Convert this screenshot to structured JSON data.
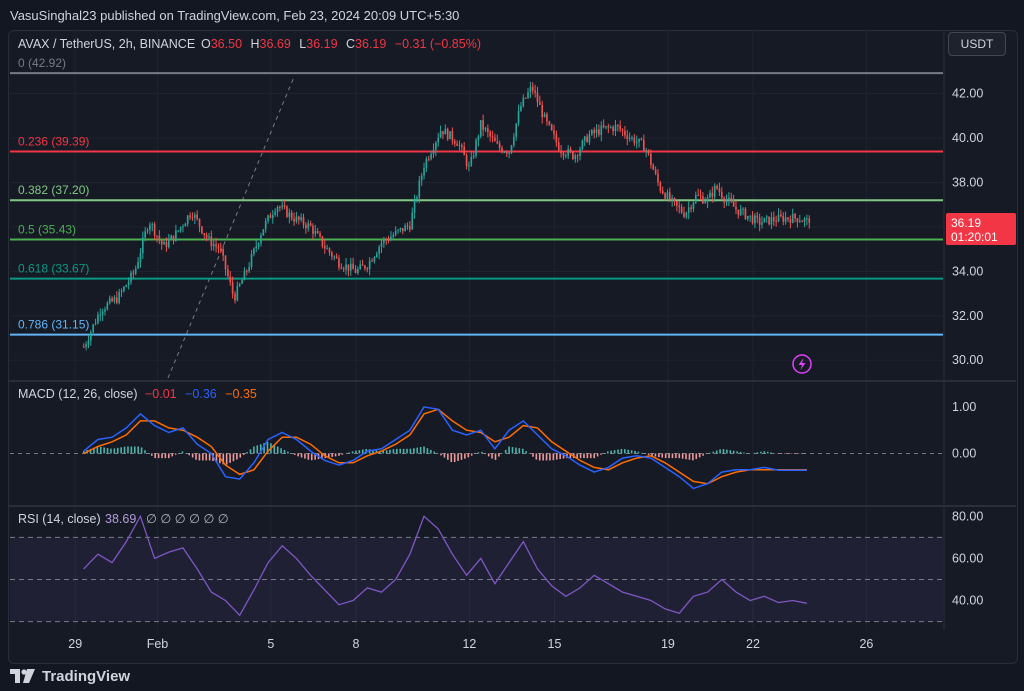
{
  "header": {
    "publisher": "VasuSinghal23 published on TradingView.com, Feb 23, 2024 20:09 UTC+5:30",
    "symbol": "AVAX / TetherUS, 2h, BINANCE",
    "ohlc": [
      {
        "label": "O",
        "value": "36.50"
      },
      {
        "label": "H",
        "value": "36.69"
      },
      {
        "label": "L",
        "value": "36.19"
      },
      {
        "label": "C",
        "value": "36.19"
      }
    ],
    "change": "−0.31 (−0.85%)",
    "currency": "USDT"
  },
  "colors": {
    "up": "#26a69a",
    "down": "#ef5350",
    "fib_0": "#787b86",
    "fib_236": "#f23645",
    "fib_382": "#81c784",
    "fib_5": "#4caf50",
    "fib_618": "#089981",
    "fib_786": "#64b5f6",
    "macd": "#2962ff",
    "signal": "#ff6d00",
    "rsi": "#7e57c2",
    "price_tag": "#f23645"
  },
  "price_tag": {
    "price": "36.19",
    "countdown": "01:20:01"
  },
  "macd_header": {
    "label": "MACD (12, 26, close)",
    "hist": "−0.01",
    "macd": "−0.36",
    "signal": "−0.35"
  },
  "rsi_header": {
    "label": "RSI (14, close)",
    "value": "38.69",
    "extras": "∅ ∅ ∅ ∅ ∅ ∅"
  },
  "footer": {
    "brand": "TradingView"
  },
  "chart_data": [
    {
      "type": "candlestick",
      "title": "AVAX / TetherUS, 2h, BINANCE",
      "x_tick_labels": [
        "29",
        "Feb",
        "5",
        "8",
        "12",
        "15",
        "19",
        "22",
        "26"
      ],
      "y_tick_labels": [
        "30.00",
        "32.00",
        "34.00",
        "36.00",
        "38.00",
        "40.00",
        "42.00"
      ],
      "ylim": [
        29.2,
        43.6
      ],
      "fib_levels": [
        {
          "label": "0 (42.92)",
          "value": 42.92
        },
        {
          "label": "0.236 (39.39)",
          "value": 39.39
        },
        {
          "label": "0.382 (37.20)",
          "value": 37.2
        },
        {
          "label": "0.5 (35.43)",
          "value": 35.43
        },
        {
          "label": "0.618 (33.67)",
          "value": 33.67
        },
        {
          "label": "0.786 (31.15)",
          "value": 31.15
        }
      ],
      "close_path": {
        "x_days": [
          0,
          0.6,
          1.2,
          1.8,
          2.3,
          2.8,
          3.2,
          3.8,
          4.4,
          4.8,
          5.3,
          5.8,
          6.3,
          6.8,
          7.4,
          8,
          8.5,
          9,
          9.6,
          10,
          10.5,
          11,
          11.5,
          12,
          12.6,
          13.2,
          13.6,
          14,
          14.6,
          15,
          15.4,
          15.8,
          16.3,
          16.8,
          17.3,
          17.8,
          18.3,
          18.8,
          19.3,
          19.8,
          20.3,
          20.8,
          21.2,
          21.6,
          22,
          22.3,
          22.6,
          23,
          23.4,
          23.8,
          24.2,
          24.7,
          25.2,
          25.6
        ],
        "values": [
          30.6,
          32.3,
          32.8,
          34.0,
          36.3,
          35.1,
          35.6,
          36.7,
          35.4,
          35.0,
          32.8,
          34.2,
          35.9,
          37.0,
          36.4,
          36.0,
          35.1,
          34.4,
          34.0,
          34.3,
          35.3,
          35.7,
          36.1,
          38.8,
          40.4,
          39.8,
          38.6,
          40.6,
          39.6,
          39.4,
          41.4,
          42.3,
          40.7,
          39.5,
          39.2,
          40.1,
          40.4,
          40.5,
          40.0,
          39.6,
          37.8,
          37.0,
          36.6,
          37.4,
          37.2,
          37.8,
          37.3,
          36.8,
          36.5,
          36.2,
          36.3,
          36.4,
          36.4,
          36.19
        ]
      },
      "last_price": 36.19
    },
    {
      "type": "line",
      "title": "MACD (12, 26, close)",
      "y_tick_labels": [
        "1.00",
        "0.00"
      ],
      "ylim": [
        -1.0,
        1.45
      ],
      "x_days": [
        0,
        0.5,
        1,
        1.5,
        2,
        2.5,
        3,
        3.5,
        4,
        4.5,
        5,
        5.5,
        6,
        6.5,
        7,
        7.5,
        8,
        8.5,
        9,
        9.5,
        10,
        10.5,
        11,
        11.5,
        12,
        12.5,
        13,
        13.5,
        14,
        14.5,
        15,
        15.5,
        16,
        16.5,
        17,
        17.5,
        18,
        18.5,
        19,
        19.5,
        20,
        20.5,
        21,
        21.5,
        22,
        22.5,
        23,
        23.5,
        24,
        24.5,
        25,
        25.5
      ],
      "series": [
        {
          "values": [
            0.05,
            0.3,
            0.35,
            0.55,
            0.85,
            0.6,
            0.45,
            0.55,
            0.2,
            0.0,
            -0.5,
            -0.55,
            -0.2,
            0.3,
            0.45,
            0.3,
            0.05,
            -0.15,
            -0.25,
            -0.15,
            0.05,
            0.1,
            0.3,
            0.5,
            1.0,
            0.95,
            0.5,
            0.4,
            0.5,
            0.1,
            0.5,
            0.7,
            0.4,
            0.1,
            -0.05,
            -0.25,
            -0.4,
            -0.3,
            -0.1,
            -0.05,
            -0.1,
            -0.3,
            -0.5,
            -0.75,
            -0.65,
            -0.4,
            -0.35,
            -0.35,
            -0.3,
            -0.36,
            -0.36,
            -0.36
          ]
        },
        {
          "values": [
            0.0,
            0.15,
            0.25,
            0.4,
            0.7,
            0.7,
            0.55,
            0.5,
            0.35,
            0.15,
            -0.25,
            -0.45,
            -0.35,
            0.05,
            0.35,
            0.35,
            0.2,
            -0.05,
            -0.2,
            -0.2,
            -0.05,
            0.05,
            0.2,
            0.4,
            0.85,
            0.95,
            0.7,
            0.5,
            0.45,
            0.25,
            0.35,
            0.6,
            0.55,
            0.25,
            0.05,
            -0.15,
            -0.3,
            -0.35,
            -0.2,
            -0.1,
            -0.05,
            -0.2,
            -0.4,
            -0.6,
            -0.65,
            -0.5,
            -0.4,
            -0.35,
            -0.35,
            -0.35,
            -0.35,
            -0.35
          ]
        }
      ]
    },
    {
      "type": "line",
      "title": "RSI (14, close)",
      "y_tick_labels": [
        "80.00",
        "60.00",
        "40.00"
      ],
      "ylim": [
        26,
        83
      ],
      "band_levels": [
        70,
        50,
        30
      ],
      "x_days": [
        0,
        0.5,
        1,
        1.5,
        2,
        2.5,
        3,
        3.5,
        4,
        4.5,
        5,
        5.5,
        6,
        6.5,
        7,
        7.5,
        8,
        8.5,
        9,
        9.5,
        10,
        10.5,
        11,
        11.5,
        12,
        12.5,
        13,
        13.5,
        14,
        14.5,
        15,
        15.5,
        16,
        16.5,
        17,
        17.5,
        18,
        18.5,
        19,
        19.5,
        20,
        20.5,
        21,
        21.5,
        22,
        22.5,
        23,
        23.5,
        24,
        24.5,
        25,
        25.5
      ],
      "values": [
        55,
        62,
        58,
        68,
        80,
        60,
        63,
        65,
        55,
        44,
        40,
        33,
        45,
        58,
        66,
        60,
        52,
        45,
        38,
        40,
        46,
        44,
        50,
        62,
        80,
        74,
        62,
        52,
        60,
        48,
        58,
        68,
        55,
        47,
        42,
        46,
        52,
        48,
        44,
        42,
        40,
        36,
        34,
        42,
        44,
        50,
        44,
        40,
        42,
        39,
        40,
        38.69
      ]
    }
  ]
}
